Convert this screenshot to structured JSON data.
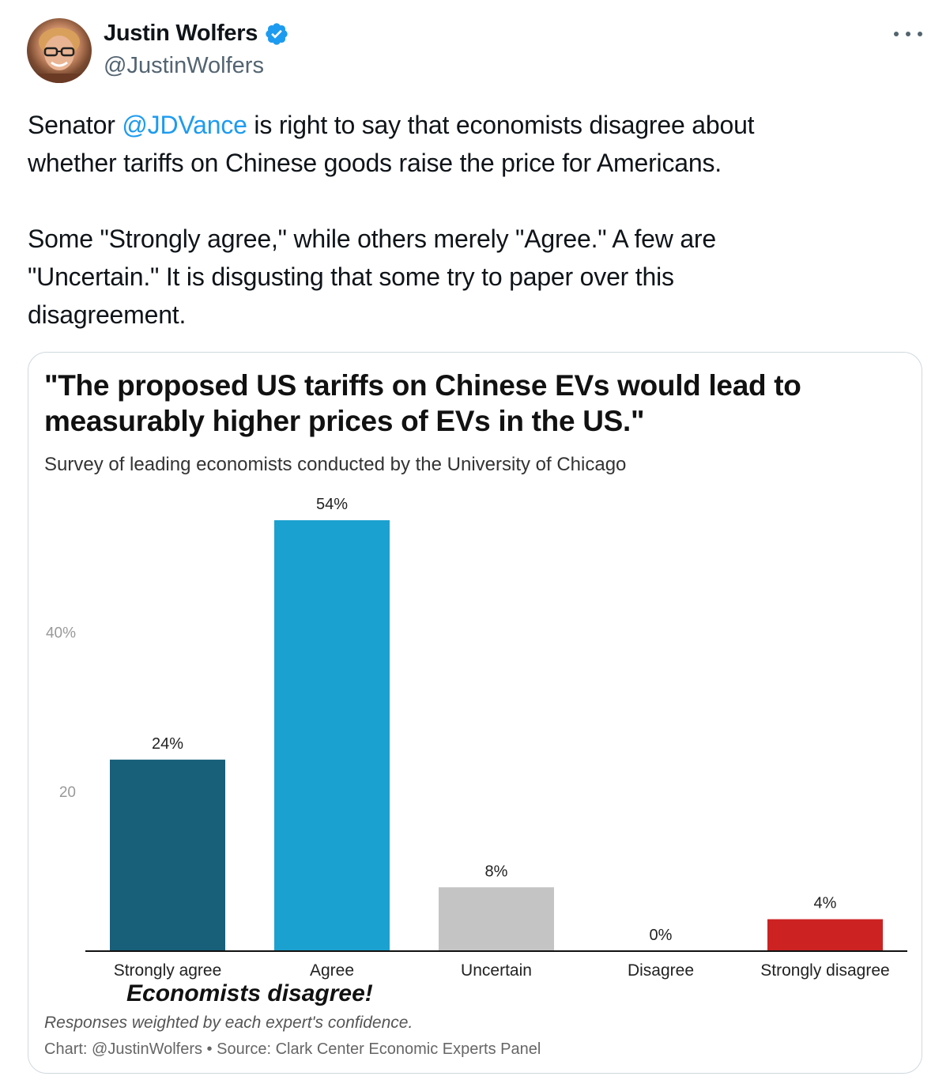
{
  "author": {
    "name": "Justin Wolfers",
    "handle": "@JustinWolfers"
  },
  "tweet": {
    "line1_before": "Senator ",
    "mention": "@JDVance",
    "line1_after": " is right to say that economists disagree about",
    "line2": "whether tariffs on Chinese goods raise the price for Americans.",
    "para2_line1": "Some \"Strongly agree,\" while others merely \"Agree.\" A few are",
    "para2_line2": "\"Uncertain.\" It is disgusting that some try to paper over this",
    "para2_line3": "disagreement."
  },
  "colors": {
    "mention": "#1d9bf0",
    "verified": "#1d9bf0"
  },
  "chart_data": {
    "type": "bar",
    "title_line1": "\"The proposed US tariffs on Chinese EVs would lead to",
    "title_line2": "measurably higher prices of EVs in the US.\"",
    "subtitle": "Survey of leading economists conducted by the University of Chicago",
    "categories": [
      "Strongly agree",
      "Agree",
      "Uncertain",
      "Disagree",
      "Strongly disagree"
    ],
    "values": [
      24,
      54,
      8,
      0,
      4
    ],
    "value_labels": [
      "24%",
      "54%",
      "8%",
      "0%",
      "4%"
    ],
    "bar_colors": [
      "#185f7a",
      "#1ba1cf",
      "#c4c4c4",
      "#c4c4c4",
      "#cc2222"
    ],
    "y_ticks": [
      {
        "value": 20,
        "label": "20"
      },
      {
        "value": 40,
        "label": "40%"
      }
    ],
    "ylim": [
      0,
      54
    ],
    "annotation": "Economists disagree!",
    "note": "Responses weighted by each expert's confidence.",
    "source": "Chart: @JustinWolfers • Source: Clark Center Economic Experts Panel",
    "grid": false,
    "legend": "none"
  }
}
